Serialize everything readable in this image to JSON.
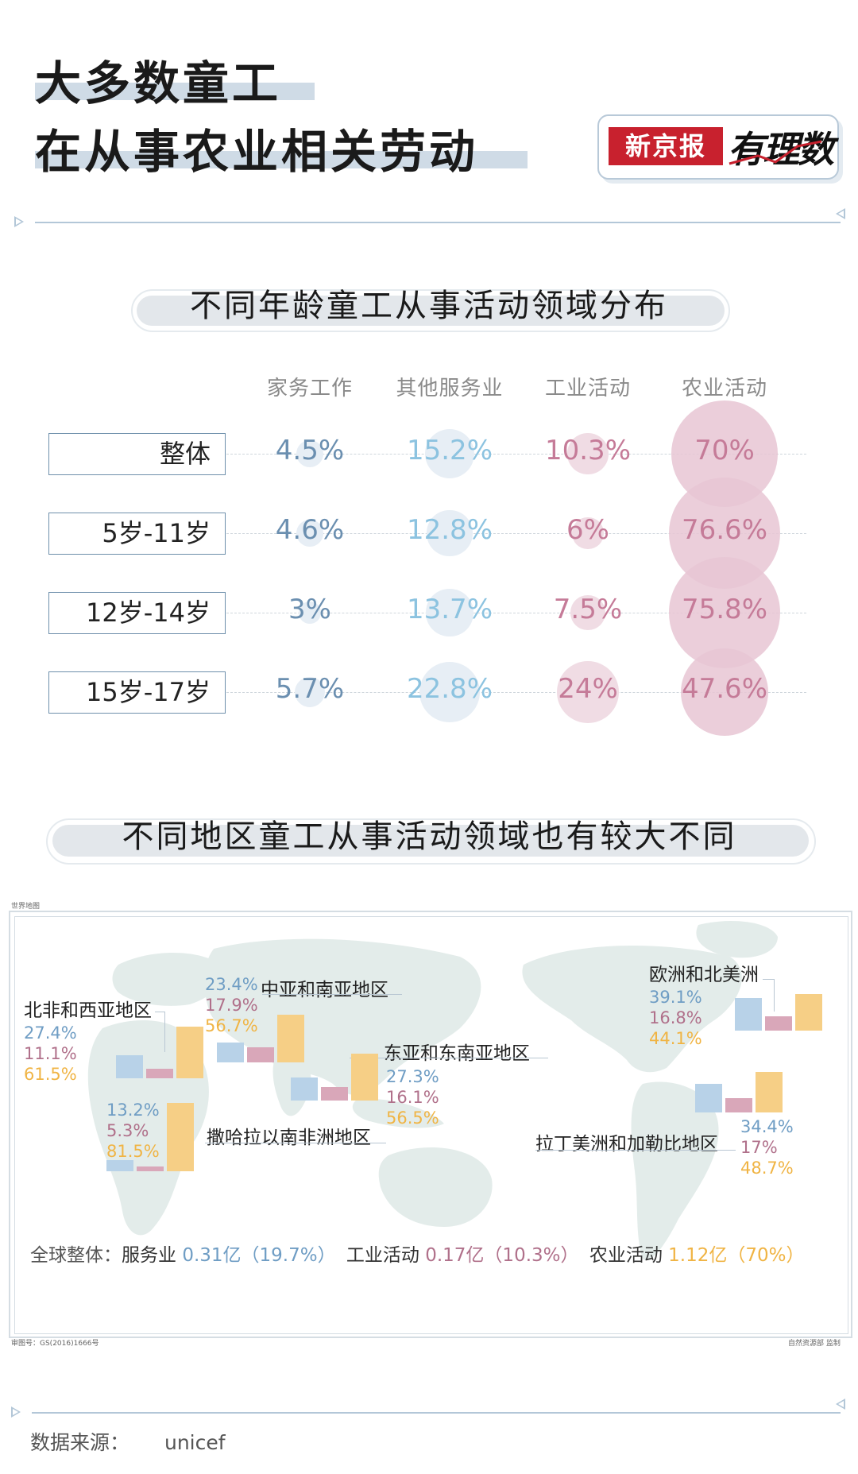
{
  "header": {
    "title_line1": "大多数童工",
    "title_line2": "在从事农业相关劳动",
    "logo_red_text": "新京报",
    "logo_script_text": "有理数"
  },
  "colors": {
    "household": "#6b8fb0",
    "other_services": "#8cc3e0",
    "industry": "#c57b98",
    "agriculture": "#c57b98",
    "bubble_blue": "#e7eef5",
    "bubble_pink_light": "#f0dce4",
    "bubble_pink": "#e8c6d3",
    "bar_services": "#b8d2e8",
    "bar_industry": "#d9a7b9",
    "bar_agriculture": "#f6cf86"
  },
  "section1": {
    "title": "不同年龄童工从事活动领域分布",
    "columns": [
      "家务工作",
      "其他服务业",
      "工业活动",
      "农业活动"
    ]
  },
  "section2": {
    "title": "不同地区童工从事活动领域也有较大不同",
    "map_label": "世界地图",
    "map_approval": "审图号：GS(2016)1666号",
    "map_supervisor": "自然资源部 监制"
  },
  "chart_data": [
    {
      "type": "table",
      "title": "不同年龄童工从事活动领域分布",
      "columns": [
        "家务工作",
        "其他服务业",
        "工业活动",
        "农业活动"
      ],
      "rows": [
        {
          "label": "整体",
          "values": [
            4.5,
            15.2,
            10.3,
            70
          ],
          "display": [
            "4.5%",
            "15.2%",
            "10.3%",
            "70%"
          ]
        },
        {
          "label": "5岁-11岁",
          "values": [
            4.6,
            12.8,
            6,
            76.6
          ],
          "display": [
            "4.6%",
            "12.8%",
            "6%",
            "76.6%"
          ]
        },
        {
          "label": "12岁-14岁",
          "values": [
            3,
            13.7,
            7.5,
            75.8
          ],
          "display": [
            "3%",
            "13.7%",
            "7.5%",
            "75.8%"
          ]
        },
        {
          "label": "15岁-17岁",
          "values": [
            5.7,
            22.8,
            24,
            47.6
          ],
          "display": [
            "5.7%",
            "22.8%",
            "24%",
            "47.6%"
          ]
        }
      ]
    },
    {
      "type": "bar",
      "title": "不同地区童工从事活动领域也有较大不同",
      "series_names": [
        "服务业",
        "工业活动",
        "农业活动"
      ],
      "regions": [
        {
          "name": "北非和西亚地区",
          "values": [
            27.4,
            11.1,
            61.5
          ],
          "display": [
            "27.4%",
            "11.1%",
            "61.5%"
          ]
        },
        {
          "name": "中亚和南亚地区",
          "values": [
            23.4,
            17.9,
            56.7
          ],
          "display": [
            "23.4%",
            "17.9%",
            "56.7%"
          ]
        },
        {
          "name": "东亚和东南亚地区",
          "values": [
            27.3,
            16.1,
            56.5
          ],
          "display": [
            "27.3%",
            "16.1%",
            "56.5%"
          ]
        },
        {
          "name": "撒哈拉以南非洲地区",
          "values": [
            13.2,
            5.3,
            81.5
          ],
          "display": [
            "13.2%",
            "5.3%",
            "81.5%"
          ]
        },
        {
          "name": "欧洲和北美洲",
          "values": [
            39.1,
            16.8,
            44.1
          ],
          "display": [
            "39.1%",
            "16.8%",
            "44.1%"
          ]
        },
        {
          "name": "拉丁美洲和加勒比地区",
          "values": [
            34.4,
            17,
            48.7
          ],
          "display": [
            "34.4%",
            "17%",
            "48.7%"
          ]
        }
      ],
      "global": {
        "label": "全球整体：",
        "items": [
          {
            "name": "服务业",
            "value": "0.31亿（19.7%）"
          },
          {
            "name": "工业活动",
            "value": "0.17亿（10.3%）"
          },
          {
            "name": "农业活动",
            "value": "1.12亿（70%）"
          }
        ]
      }
    }
  ],
  "footer": {
    "source_label": "数据来源：",
    "source_value": "unicef"
  }
}
